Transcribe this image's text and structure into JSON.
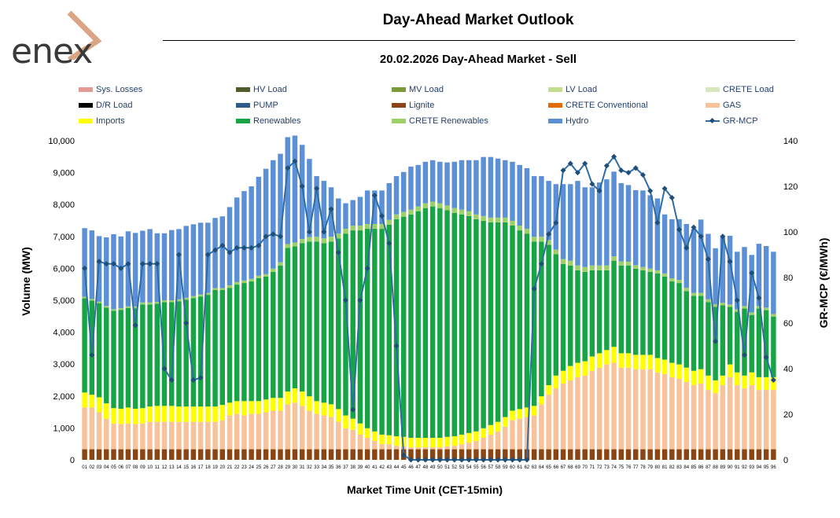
{
  "header": {
    "logo_text": "enex",
    "title": "Day-Ahead Market Outlook",
    "subtitle": "20.02.2026  Day-Ahead Market - Sell"
  },
  "colors": {
    "sys_losses": "#e59a91",
    "hv_load": "#4d5e2a",
    "mv_load": "#7d9a3a",
    "lv_load": "#c3dd8f",
    "crete_load": "#d7e8bf",
    "dr_load": "#000000",
    "pump": "#2f5b8c",
    "lignite": "#8b4513",
    "crete_conventional": "#e36c09",
    "gas": "#f8c29b",
    "imports": "#ffff00",
    "renewables": "#17a445",
    "crete_renewables": "#9dd168",
    "hydro": "#5b8fd6",
    "gr_mcp": "#2e6da4",
    "gr_mcp_marker": "#1f4e79"
  },
  "chart_data": {
    "type": "stacked-bar-with-line",
    "title": "Day-Ahead Market Outlook",
    "subtitle": "20.02.2026  Day-Ahead Market - Sell",
    "xlabel": "Market Time Unit (CET-15min)",
    "ylabel": "Volume (MW)",
    "y2label": "GR-MCP (€/MWh)",
    "ylim": [
      0,
      10000
    ],
    "y2lim": [
      0,
      140
    ],
    "yticks": [
      "0",
      "1,000",
      "2,000",
      "3,000",
      "4,000",
      "5,000",
      "6,000",
      "7,000",
      "8,000",
      "9,000",
      "10,000"
    ],
    "y2ticks": [
      "0",
      "20",
      "40",
      "60",
      "80",
      "100",
      "120",
      "140"
    ],
    "legend": [
      {
        "key": "sys_losses",
        "label": "Sys. Losses",
        "kind": "bar"
      },
      {
        "key": "hv_load",
        "label": "HV Load",
        "kind": "bar"
      },
      {
        "key": "mv_load",
        "label": "MV Load",
        "kind": "bar"
      },
      {
        "key": "lv_load",
        "label": "LV Load",
        "kind": "bar"
      },
      {
        "key": "crete_load",
        "label": "CRETE Load",
        "kind": "bar"
      },
      {
        "key": "dr_load",
        "label": "D/R Load",
        "kind": "bar"
      },
      {
        "key": "pump",
        "label": "PUMP",
        "kind": "bar"
      },
      {
        "key": "lignite",
        "label": "Lignite",
        "kind": "bar"
      },
      {
        "key": "crete_conventional",
        "label": "CRETE Conventional",
        "kind": "bar"
      },
      {
        "key": "gas",
        "label": "GAS",
        "kind": "bar"
      },
      {
        "key": "imports",
        "label": "Imports",
        "kind": "bar"
      },
      {
        "key": "renewables",
        "label": "Renewables",
        "kind": "bar"
      },
      {
        "key": "crete_renewables",
        "label": "CRETE Renewables",
        "kind": "bar"
      },
      {
        "key": "hydro",
        "label": "Hydro",
        "kind": "bar"
      },
      {
        "key": "gr_mcp",
        "label": "GR-MCP",
        "kind": "line"
      }
    ],
    "categories": [
      "01",
      "02",
      "03",
      "04",
      "05",
      "06",
      "07",
      "08",
      "09",
      "10",
      "11",
      "12",
      "13",
      "14",
      "15",
      "16",
      "17",
      "18",
      "19",
      "20",
      "21",
      "22",
      "23",
      "24",
      "25",
      "26",
      "27",
      "28",
      "29",
      "30",
      "31",
      "32",
      "33",
      "34",
      "35",
      "36",
      "37",
      "38",
      "39",
      "40",
      "41",
      "42",
      "43",
      "44",
      "45",
      "46",
      "47",
      "48",
      "49",
      "50",
      "51",
      "52",
      "53",
      "54",
      "55",
      "56",
      "57",
      "58",
      "59",
      "60",
      "61",
      "62",
      "63",
      "64",
      "65",
      "66",
      "67",
      "68",
      "69",
      "70",
      "71",
      "72",
      "73",
      "74",
      "75",
      "76",
      "77",
      "78",
      "79",
      "80",
      "81",
      "82",
      "83",
      "84",
      "85",
      "86",
      "87",
      "88",
      "89",
      "90",
      "91",
      "92",
      "93",
      "94",
      "95",
      "96"
    ],
    "series": [
      {
        "key": "lignite",
        "name": "Lignite",
        "values": [
          330,
          330,
          330,
          330,
          330,
          330,
          330,
          330,
          330,
          330,
          330,
          330,
          330,
          330,
          330,
          330,
          330,
          330,
          330,
          330,
          330,
          330,
          330,
          330,
          330,
          330,
          330,
          330,
          330,
          330,
          330,
          330,
          330,
          330,
          330,
          330,
          330,
          330,
          330,
          330,
          330,
          330,
          330,
          330,
          330,
          330,
          330,
          330,
          330,
          330,
          330,
          330,
          330,
          330,
          330,
          330,
          330,
          330,
          330,
          330,
          330,
          330,
          330,
          330,
          330,
          330,
          330,
          330,
          330,
          330,
          330,
          330,
          330,
          330,
          330,
          330,
          330,
          330,
          330,
          330,
          330,
          330,
          330,
          330,
          330,
          330,
          330,
          330,
          330,
          330,
          330,
          330,
          330,
          330,
          330,
          330
        ]
      },
      {
        "key": "crete_conventional",
        "name": "CRETE Conventional",
        "values": [
          10,
          10,
          10,
          10,
          10,
          10,
          10,
          10,
          10,
          10,
          10,
          10,
          10,
          10,
          10,
          10,
          10,
          10,
          10,
          10,
          10,
          10,
          10,
          10,
          10,
          10,
          10,
          10,
          10,
          10,
          10,
          10,
          10,
          10,
          10,
          10,
          10,
          10,
          10,
          10,
          10,
          10,
          10,
          10,
          10,
          10,
          10,
          10,
          10,
          10,
          10,
          10,
          10,
          10,
          10,
          10,
          10,
          10,
          10,
          10,
          10,
          10,
          10,
          10,
          10,
          10,
          10,
          10,
          10,
          10,
          10,
          10,
          10,
          10,
          10,
          10,
          10,
          10,
          10,
          10,
          10,
          10,
          10,
          10,
          10,
          10,
          10,
          10,
          10,
          10,
          10,
          10,
          10,
          10,
          10,
          10
        ]
      },
      {
        "key": "gas",
        "name": "GAS",
        "values": [
          1300,
          1300,
          1150,
          950,
          800,
          780,
          800,
          780,
          800,
          850,
          850,
          850,
          850,
          850,
          850,
          850,
          850,
          850,
          850,
          900,
          1050,
          1100,
          1050,
          1100,
          1100,
          1150,
          1200,
          1200,
          1400,
          1450,
          1350,
          1200,
          1100,
          1050,
          1000,
          850,
          650,
          600,
          450,
          350,
          250,
          150,
          150,
          100,
          80,
          50,
          50,
          50,
          50,
          50,
          80,
          100,
          150,
          200,
          250,
          350,
          450,
          550,
          700,
          900,
          950,
          1000,
          1050,
          1400,
          1700,
          1900,
          2050,
          2150,
          2250,
          2300,
          2450,
          2550,
          2650,
          2700,
          2550,
          2550,
          2500,
          2500,
          2500,
          2400,
          2350,
          2250,
          2200,
          2100,
          2000,
          2050,
          1850,
          1750,
          2000,
          2250,
          2000,
          1900,
          2000,
          1850,
          1850,
          1850
        ]
      },
      {
        "key": "imports",
        "name": "Imports",
        "values": [
          470,
          400,
          470,
          480,
          480,
          480,
          500,
          480,
          480,
          480,
          500,
          500,
          500,
          480,
          480,
          480,
          480,
          480,
          480,
          480,
          400,
          400,
          450,
          400,
          400,
          400,
          400,
          400,
          400,
          450,
          450,
          450,
          400,
          400,
          400,
          400,
          400,
          350,
          350,
          300,
          300,
          300,
          280,
          300,
          300,
          300,
          300,
          300,
          300,
          300,
          300,
          300,
          300,
          300,
          300,
          300,
          300,
          300,
          300,
          300,
          300,
          300,
          300,
          250,
          300,
          400,
          400,
          450,
          450,
          450,
          450,
          450,
          450,
          500,
          450,
          450,
          450,
          450,
          450,
          450,
          450,
          450,
          450,
          450,
          450,
          450,
          450,
          400,
          300,
          400,
          400,
          400,
          400,
          400,
          400,
          400
        ]
      },
      {
        "key": "renewables",
        "name": "Renewables",
        "values": [
          2950,
          2950,
          2950,
          3000,
          3050,
          3100,
          3120,
          3150,
          3250,
          3200,
          3200,
          3250,
          3250,
          3300,
          3350,
          3400,
          3450,
          3500,
          3650,
          3600,
          3600,
          3650,
          3700,
          3750,
          3850,
          3850,
          3950,
          4150,
          4500,
          4450,
          4650,
          4850,
          5000,
          5000,
          5100,
          5350,
          5700,
          5900,
          6050,
          6250,
          6350,
          6450,
          6600,
          6800,
          6900,
          7000,
          7100,
          7200,
          7250,
          7200,
          7100,
          7000,
          6900,
          6800,
          6650,
          6500,
          6350,
          6250,
          6100,
          5800,
          5600,
          5450,
          5150,
          4850,
          4400,
          3800,
          3350,
          3150,
          2900,
          2800,
          2700,
          2600,
          2500,
          2700,
          2750,
          2750,
          2700,
          2650,
          2600,
          2650,
          2600,
          2550,
          2550,
          2400,
          2350,
          2300,
          2300,
          2300,
          2200,
          1800,
          1900,
          2100,
          1800,
          2150,
          2100,
          1900
        ]
      },
      {
        "key": "crete_renewables",
        "name": "CRETE Renewables",
        "values": [
          50,
          50,
          50,
          50,
          50,
          50,
          50,
          60,
          60,
          60,
          60,
          60,
          60,
          60,
          60,
          60,
          60,
          60,
          60,
          60,
          80,
          80,
          80,
          80,
          80,
          80,
          100,
          100,
          120,
          120,
          130,
          140,
          150,
          150,
          150,
          150,
          150,
          150,
          150,
          150,
          150,
          150,
          150,
          150,
          150,
          150,
          150,
          150,
          150,
          150,
          150,
          150,
          150,
          150,
          150,
          150,
          150,
          150,
          150,
          150,
          150,
          150,
          150,
          150,
          150,
          150,
          150,
          150,
          150,
          150,
          150,
          150,
          150,
          140,
          130,
          120,
          110,
          100,
          100,
          100,
          100,
          100,
          100,
          100,
          90,
          90,
          90,
          90,
          80,
          80,
          80,
          80,
          80,
          80,
          80,
          80
        ]
      },
      {
        "key": "hydro",
        "name": "Hydro",
        "values": [
          2150,
          2150,
          2050,
          2150,
          2350,
          2250,
          2350,
          2300,
          2250,
          2300,
          2150,
          2100,
          2200,
          2200,
          2250,
          2250,
          2250,
          2200,
          2200,
          2250,
          2450,
          2650,
          2800,
          2900,
          3100,
          3300,
          3400,
          3400,
          3350,
          3350,
          2950,
          2450,
          1900,
          1800,
          1550,
          1100,
          800,
          800,
          900,
          1050,
          1050,
          1050,
          1150,
          1200,
          1250,
          1350,
          1300,
          1300,
          1300,
          1300,
          1350,
          1450,
          1550,
          1600,
          1700,
          1850,
          1900,
          1850,
          1800,
          1850,
          1900,
          1900,
          1900,
          1900,
          1850,
          2050,
          2350,
          2400,
          2650,
          2500,
          2450,
          2600,
          2700,
          2650,
          2450,
          2400,
          2350,
          2400,
          2300,
          2250,
          1850,
          1850,
          1900,
          2000,
          2000,
          2300,
          2050,
          1750,
          2050,
          2150,
          1800,
          1850,
          1800,
          1950,
          1930,
          1950
        ]
      }
    ],
    "line": {
      "key": "gr_mcp",
      "name": "GR-MCP",
      "axis": "right",
      "values": [
        84,
        46,
        87,
        86,
        86,
        84,
        86,
        59,
        86,
        86,
        86,
        40,
        35,
        90,
        60,
        35,
        36,
        90,
        92,
        94,
        91,
        93,
        93,
        93,
        94,
        98,
        99,
        98,
        128,
        131,
        120,
        100,
        119,
        100,
        110,
        91,
        70,
        22,
        70,
        84,
        116,
        107,
        95,
        50,
        2,
        0,
        0,
        0,
        0,
        0,
        0,
        0,
        0,
        0,
        0,
        0,
        0,
        0,
        0,
        0,
        0,
        0,
        75,
        86,
        99,
        104,
        127,
        130,
        126,
        130,
        121,
        118,
        129,
        133,
        127,
        126,
        128,
        125,
        118,
        104,
        119,
        115,
        101,
        93,
        102,
        98,
        88,
        52,
        98,
        87,
        70,
        46,
        82,
        71,
        45,
        35
      ]
    }
  }
}
